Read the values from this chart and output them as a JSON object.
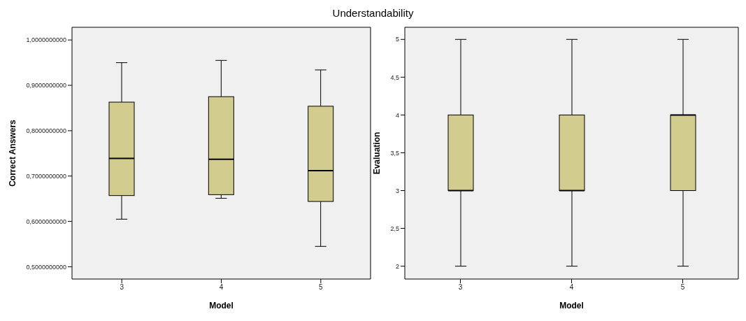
{
  "chart_data": [
    {
      "type": "box",
      "title": "Understandability",
      "xlabel": "Model",
      "ylabel": "Correct Answers",
      "categories": [
        "3",
        "4",
        "5"
      ],
      "color": "#d2cc8e",
      "boxes": [
        {
          "low": 0.605,
          "q1": 0.657,
          "median": 0.739,
          "q3": 0.863,
          "high": 0.95
        },
        {
          "low": 0.651,
          "q1": 0.659,
          "median": 0.737,
          "q3": 0.875,
          "high": 0.955
        },
        {
          "low": 0.545,
          "q1": 0.644,
          "median": 0.712,
          "q3": 0.854,
          "high": 0.934
        }
      ],
      "ylim": [
        0.473,
        1.028
      ],
      "yticks": [
        {
          "value": 0.5,
          "label": "0,5000000000"
        },
        {
          "value": 0.6,
          "label": "0,6000000000"
        },
        {
          "value": 0.7,
          "label": "0,7000000000"
        },
        {
          "value": 0.8,
          "label": "0,8000000000"
        },
        {
          "value": 0.9,
          "label": "0,9000000000"
        },
        {
          "value": 1.0,
          "label": "1,0000000000"
        }
      ]
    },
    {
      "type": "box",
      "xlabel": "Model",
      "ylabel": "Evaluation",
      "categories": [
        "3",
        "4",
        "5"
      ],
      "color": "#d2cc8e",
      "boxes": [
        {
          "low": 2,
          "q1": 3,
          "median": 3,
          "q3": 4,
          "high": 5
        },
        {
          "low": 2,
          "q1": 3,
          "median": 3,
          "q3": 4,
          "high": 5
        },
        {
          "low": 2,
          "q1": 3,
          "median": 4,
          "q3": 4,
          "high": 5
        }
      ],
      "ylim": [
        1.83,
        5.16
      ],
      "yticks": [
        2,
        {
          "value": 2.5,
          "label": "2,5"
        },
        3,
        {
          "value": 3.5,
          "label": "3,5"
        },
        4,
        {
          "value": 4.5,
          "label": "4,5"
        },
        5
      ]
    }
  ]
}
